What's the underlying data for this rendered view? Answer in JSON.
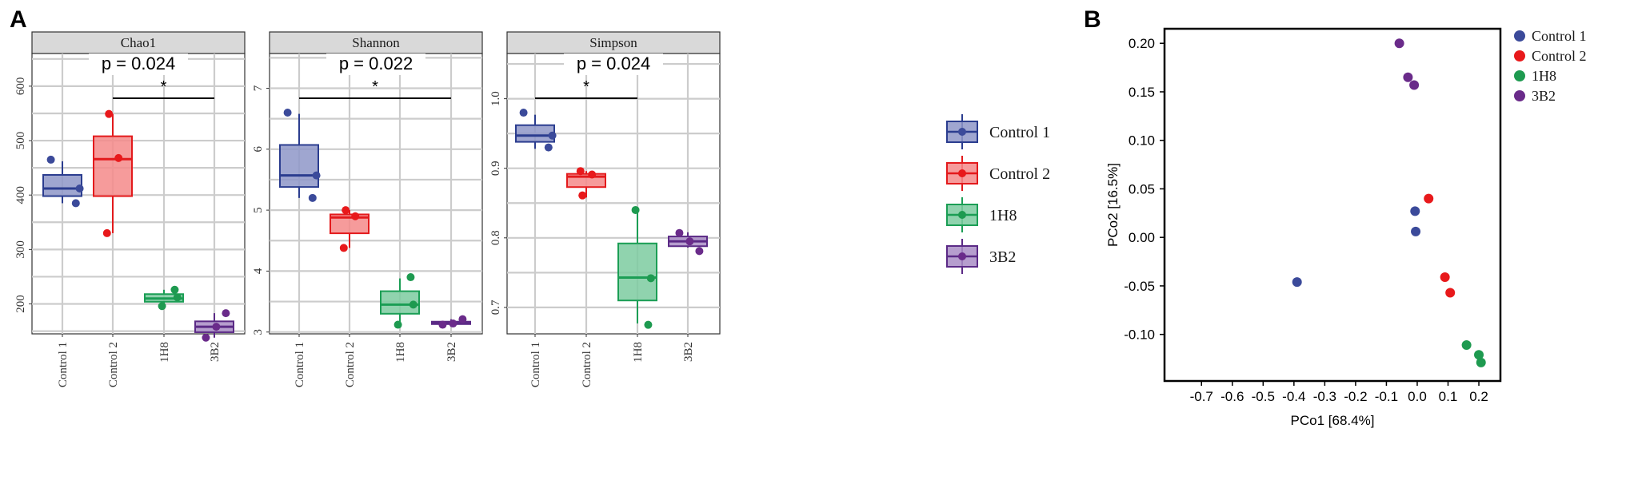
{
  "figure": {
    "panel_a_label": "A",
    "panel_b_label": "B"
  },
  "groups": [
    "Control 1",
    "Control 2",
    "1H8",
    "3B2"
  ],
  "colors": {
    "Control 1": {
      "fill": "#8e96c8",
      "stroke": "#2b3d8f",
      "point": "#3b4a9a"
    },
    "Control 2": {
      "fill": "#f58a8a",
      "stroke": "#e31a1c",
      "point": "#e8191b"
    },
    "1H8": {
      "fill": "#7ccba0",
      "stroke": "#1b9e55",
      "point": "#1e9a50"
    },
    "3B2": {
      "fill": "#a98dc6",
      "stroke": "#5b2a86",
      "point": "#6a2b8a"
    }
  },
  "legend": {
    "items": [
      "Control 1",
      "Control 2",
      "1H8",
      "3B2"
    ]
  },
  "chart_data": [
    {
      "type": "boxplot",
      "title": "Chao1",
      "categories": [
        "Control 1",
        "Control 2",
        "1H8",
        "3B2"
      ],
      "ylim": [
        145,
        660
      ],
      "yticks": [
        200,
        300,
        400,
        500,
        600
      ],
      "boxes": [
        {
          "min": 385,
          "q1": 398,
          "median": 412,
          "q3": 437,
          "max": 462
        },
        {
          "min": 330,
          "q1": 398,
          "median": 466,
          "q3": 508,
          "max": 549
        },
        {
          "min": 196,
          "q1": 204,
          "median": 210,
          "q3": 218,
          "max": 226
        },
        {
          "min": 138,
          "q1": 148,
          "median": 158,
          "q3": 168,
          "max": 183
        }
      ],
      "points": [
        [
          465,
          385,
          412
        ],
        [
          549,
          330,
          468
        ],
        [
          196,
          226,
          212
        ],
        [
          138,
          183,
          158
        ]
      ],
      "significance": {
        "text": "p = 0.024",
        "star": "*",
        "from": "Control 2",
        "to": "3B2"
      }
    },
    {
      "type": "boxplot",
      "title": "Shannon",
      "categories": [
        "Control 1",
        "Control 2",
        "1H8",
        "3B2"
      ],
      "ylim": [
        2.97,
        7.57
      ],
      "yticks": [
        3,
        4,
        5,
        6,
        7
      ],
      "boxes": [
        {
          "min": 5.2,
          "q1": 5.38,
          "median": 5.57,
          "q3": 6.07,
          "max": 6.58
        },
        {
          "min": 4.38,
          "q1": 4.62,
          "median": 4.88,
          "q3": 4.93,
          "max": 5.0
        },
        {
          "min": 3.12,
          "q1": 3.3,
          "median": 3.45,
          "q3": 3.67,
          "max": 3.88
        },
        {
          "min": 3.12,
          "q1": 3.13,
          "median": 3.14,
          "q3": 3.17,
          "max": 3.21
        }
      ],
      "points": [
        [
          6.6,
          5.2,
          5.57
        ],
        [
          5.0,
          4.38,
          4.9
        ],
        [
          3.12,
          3.9,
          3.45
        ],
        [
          3.12,
          3.21,
          3.14
        ]
      ],
      "significance": {
        "text": "p = 0.022",
        "star": "*",
        "from": "Control 1",
        "to": "3B2"
      }
    },
    {
      "type": "boxplot",
      "title": "Simpson",
      "categories": [
        "Control 1",
        "Control 2",
        "1H8",
        "3B2"
      ],
      "ylim": [
        0.662,
        1.065
      ],
      "yticks": [
        0.7,
        0.8,
        0.9,
        1.0
      ],
      "boxes": [
        {
          "min": 0.928,
          "q1": 0.938,
          "median": 0.947,
          "q3": 0.962,
          "max": 0.977
        },
        {
          "min": 0.858,
          "q1": 0.873,
          "median": 0.888,
          "q3": 0.892,
          "max": 0.896
        },
        {
          "min": 0.677,
          "q1": 0.71,
          "median": 0.743,
          "q3": 0.792,
          "max": 0.84
        },
        {
          "min": 0.786,
          "q1": 0.788,
          "median": 0.795,
          "q3": 0.802,
          "max": 0.808
        }
      ],
      "points": [
        [
          0.98,
          0.93,
          0.947
        ],
        [
          0.861,
          0.896,
          0.891
        ],
        [
          0.84,
          0.675,
          0.742
        ],
        [
          0.807,
          0.781,
          0.795
        ]
      ],
      "significance": {
        "text": "p = 0.024",
        "star": "*",
        "from": "Control 1",
        "to": "1H8"
      }
    },
    {
      "type": "scatter",
      "title": "",
      "xlabel": "PCo1 [68.4%]",
      "ylabel": "PCo2 [16.5%]",
      "xlim": [
        -0.82,
        0.27
      ],
      "ylim": [
        -0.148,
        0.215
      ],
      "xticks": [
        -0.7,
        -0.6,
        -0.5,
        -0.4,
        -0.3,
        -0.2,
        -0.1,
        0.0,
        0.1,
        0.2
      ],
      "xtick_labels": [
        "-0.7",
        "-0.6",
        "-0.5",
        "-0.4",
        "-0.3",
        "-0.2",
        "-0.1",
        "0.0",
        "0.1",
        "0.2"
      ],
      "yticks": [
        -0.1,
        -0.05,
        0.0,
        0.05,
        0.1,
        0.15,
        0.2
      ],
      "ytick_labels": [
        "-0.10",
        "-0.05",
        "0.00",
        "0.05",
        "0.10",
        "0.15",
        "0.20"
      ],
      "series": [
        {
          "name": "Control 1",
          "x": [
            -0.39,
            -0.007,
            -0.005
          ],
          "y": [
            -0.046,
            0.027,
            0.006
          ]
        },
        {
          "name": "Control 2",
          "x": [
            0.037,
            0.09,
            0.107
          ],
          "y": [
            0.04,
            -0.041,
            -0.057
          ]
        },
        {
          "name": "1H8",
          "x": [
            0.16,
            0.2,
            0.207
          ],
          "y": [
            -0.111,
            -0.121,
            -0.129
          ]
        },
        {
          "name": "3B2",
          "x": [
            -0.058,
            -0.03,
            -0.01
          ],
          "y": [
            0.2,
            0.165,
            0.157
          ]
        }
      ],
      "legend": [
        "Control 1",
        "Control 2",
        "1H8",
        "3B2"
      ]
    }
  ]
}
